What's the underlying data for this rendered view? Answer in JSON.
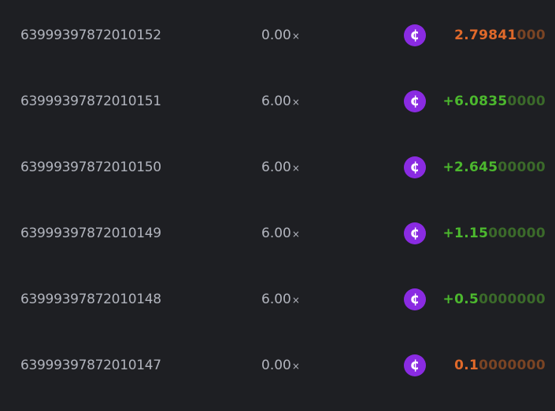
{
  "colors": {
    "background": "#1e1f23",
    "win": "#4cb82e",
    "loss": "#e0692a",
    "coin": "#8a2be2"
  },
  "coin_icon": "cent-coin-icon",
  "rows": [
    {
      "id": "63999397872010152",
      "multiplier": "0.00",
      "mult_suffix": "×",
      "amount_main": "2.79841",
      "amount_dim": "000",
      "type": "loss"
    },
    {
      "id": "63999397872010151",
      "multiplier": "6.00",
      "mult_suffix": "×",
      "amount_main": "+6.0835",
      "amount_dim": "0000",
      "type": "win"
    },
    {
      "id": "63999397872010150",
      "multiplier": "6.00",
      "mult_suffix": "×",
      "amount_main": "+2.645",
      "amount_dim": "00000",
      "type": "win"
    },
    {
      "id": "63999397872010149",
      "multiplier": "6.00",
      "mult_suffix": "×",
      "amount_main": "+1.15",
      "amount_dim": "000000",
      "type": "win"
    },
    {
      "id": "63999397872010148",
      "multiplier": "6.00",
      "mult_suffix": "×",
      "amount_main": "+0.5",
      "amount_dim": "0000000",
      "type": "win"
    },
    {
      "id": "63999397872010147",
      "multiplier": "0.00",
      "mult_suffix": "×",
      "amount_main": "0.1",
      "amount_dim": "0000000",
      "type": "loss"
    }
  ]
}
